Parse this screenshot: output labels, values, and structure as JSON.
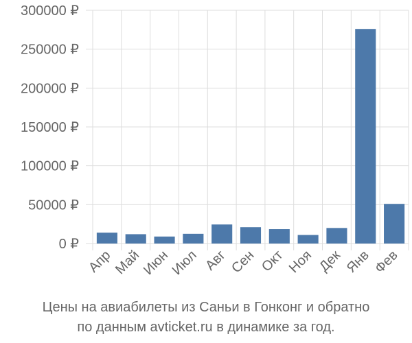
{
  "chart_data": {
    "type": "bar",
    "categories": [
      "Апр",
      "Май",
      "Июн",
      "Июл",
      "Авг",
      "Сен",
      "Окт",
      "Ноя",
      "Дек",
      "Янв",
      "Фев"
    ],
    "values": [
      14000,
      12000,
      9000,
      12500,
      24500,
      21000,
      18500,
      11000,
      20000,
      276000,
      51000
    ],
    "y_ticks": [
      "0 ₽",
      "50000 ₽",
      "100000 ₽",
      "150000 ₽",
      "200000 ₽",
      "250000 ₽",
      "300000 ₽"
    ],
    "y_tick_values": [
      0,
      50000,
      100000,
      150000,
      200000,
      250000,
      300000
    ],
    "ylim": [
      0,
      300000
    ],
    "grid": true,
    "bar_color": "#4d79aa",
    "grid_color": "#dddddd"
  },
  "caption": {
    "line1": "Цены на авиабилеты из Саньи в Гонконг и обратно",
    "line2": "по данным avticket.ru в динамике за год."
  }
}
